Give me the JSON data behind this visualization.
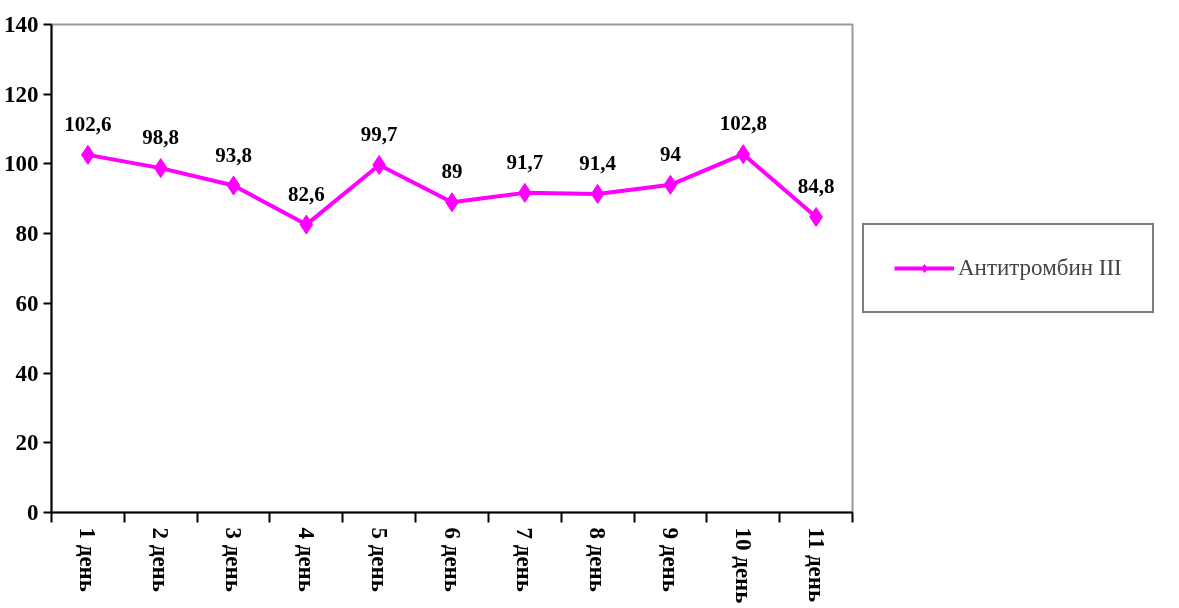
{
  "chart_data": {
    "type": "line",
    "categories": [
      "1 день",
      "2 день",
      "3 день",
      "4 день",
      "5 день",
      "6 день",
      "7 день",
      "8 день",
      "9 день",
      "10 день",
      "11 день"
    ],
    "series": [
      {
        "name": "Антитромбин III",
        "color": "#ff00ff",
        "values": [
          102.6,
          98.8,
          93.8,
          82.6,
          99.7,
          89,
          91.7,
          91.4,
          94,
          102.8,
          84.8
        ],
        "value_labels": [
          "102,6",
          "98,8",
          "93,8",
          "82,6",
          "99,7",
          "89",
          "91,7",
          "91,4",
          "94",
          "102,8",
          "84,8"
        ]
      }
    ],
    "ylim": [
      0,
      140
    ],
    "yticks": [
      0,
      20,
      40,
      60,
      80,
      100,
      120,
      140
    ],
    "grid": false,
    "legend": "right",
    "marker": "diamond",
    "line_style": "solid"
  }
}
